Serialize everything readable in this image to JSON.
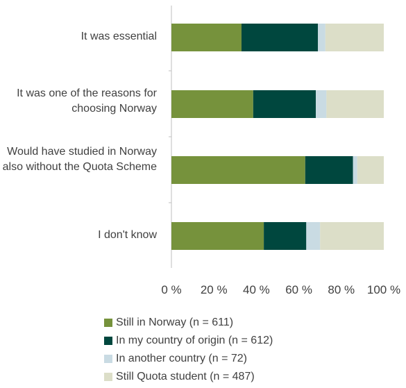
{
  "chart_data": {
    "type": "bar",
    "orientation": "horizontal",
    "stacked": true,
    "percent": true,
    "categories": [
      "It was essential",
      "It was one of the reasons for choosing Norway",
      "Would have studied in Norway also without the Quota Scheme",
      "I don't know"
    ],
    "series": [
      {
        "name": "Still in Norway (n = 611)",
        "color": "#76923c",
        "values": [
          33,
          38.5,
          63,
          43.5
        ]
      },
      {
        "name": "In my country of origin (n = 612)",
        "color": "#00473e",
        "values": [
          36,
          29.5,
          22.5,
          20
        ]
      },
      {
        "name": "In another country (n = 72)",
        "color": "#c9dbe3",
        "values": [
          3.5,
          5,
          2,
          6.5
        ]
      },
      {
        "name": "Still Quota student (n = 487)",
        "color": "#dcdec8",
        "values": [
          27.5,
          27,
          12.5,
          30
        ]
      }
    ],
    "xticks": [
      "0 %",
      "20 %",
      "40 %",
      "60 %",
      "80 %",
      "100 %"
    ],
    "xlim": [
      0,
      100
    ],
    "grid": false,
    "legend_position": "bottom"
  }
}
